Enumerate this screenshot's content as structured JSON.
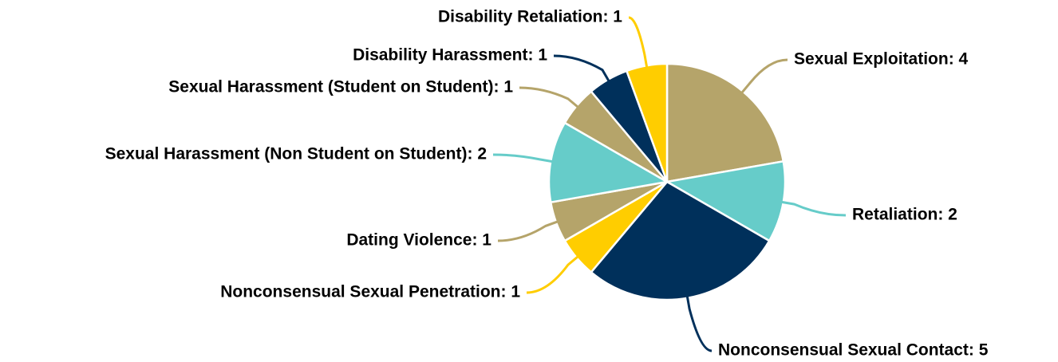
{
  "chart_data": {
    "type": "pie",
    "categories": [
      "Sexual Exploitation: 4",
      "Retaliation: 2",
      "Nonconsensual Sexual Contact: 5",
      "Nonconsensual Sexual Penetration: 1",
      "Dating Violence: 1",
      "Sexual Harassment (Non Student on Student): 2",
      "Sexual Harassment (Student on Student): 1",
      "Disability Harassment: 1",
      "Disability Retaliation: 1"
    ],
    "values": [
      4,
      2,
      5,
      1,
      1,
      2,
      1,
      1,
      1
    ],
    "colors": [
      "#b5a46a",
      "#66ccc9",
      "#00305b",
      "#ffcd00",
      "#b5a46a",
      "#66ccc9",
      "#b5a46a",
      "#00305b",
      "#ffcd00"
    ]
  }
}
